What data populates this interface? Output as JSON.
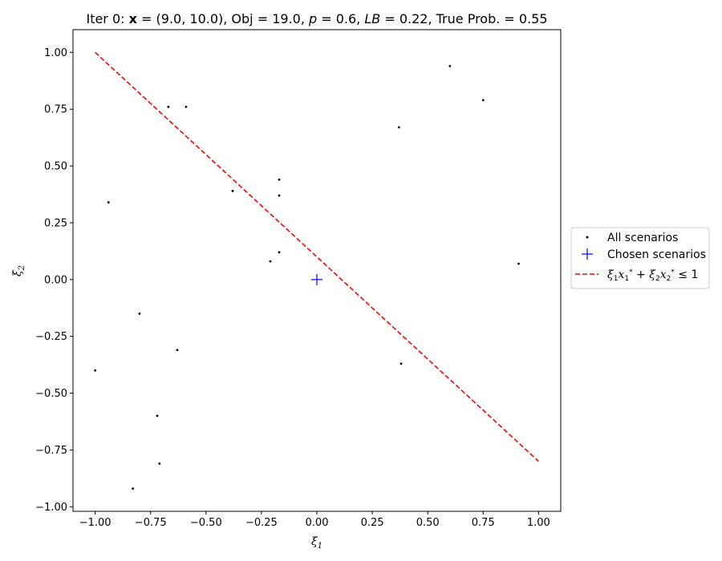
{
  "chart_data": {
    "type": "scatter",
    "title": {
      "prefix": "Iter 0: ",
      "bold_var": "x",
      "rest_1": " = (9.0, 10.0), Obj = 19.0, ",
      "p_var": "p",
      "rest_2": " = 0.6, ",
      "lb_var": "LB",
      "rest_3": " = 0.22, True Prob. = 0.55"
    },
    "xlabel": "ξ1",
    "ylabel": "ξ2",
    "xlim": [
      -1.1,
      1.1
    ],
    "ylim": [
      -1.02,
      1.1
    ],
    "grid": false,
    "legend_position": "outside-right",
    "xticks": [
      -1.0,
      -0.75,
      -0.5,
      -0.25,
      0.0,
      0.25,
      0.5,
      0.75,
      1.0
    ],
    "xtick_labels": [
      "−1.00",
      "−0.75",
      "−0.50",
      "−0.25",
      "0.00",
      "0.25",
      "0.50",
      "0.75",
      "1.00"
    ],
    "yticks": [
      -1.0,
      -0.75,
      -0.5,
      -0.25,
      0.0,
      0.25,
      0.5,
      0.75,
      1.0
    ],
    "ytick_labels": [
      "−1.00",
      "−0.75",
      "−0.50",
      "−0.25",
      "0.00",
      "0.25",
      "0.50",
      "0.75",
      "1.00"
    ],
    "series": [
      {
        "name": "All scenarios",
        "marker": "dot",
        "color": "#000000",
        "points": [
          [
            -0.67,
            0.76
          ],
          [
            -0.59,
            0.76
          ],
          [
            -0.94,
            0.34
          ],
          [
            -0.38,
            0.39
          ],
          [
            -0.17,
            0.44
          ],
          [
            -0.17,
            0.37
          ],
          [
            -0.17,
            0.12
          ],
          [
            -0.21,
            0.08
          ],
          [
            -0.8,
            -0.15
          ],
          [
            -0.63,
            -0.31
          ],
          [
            -1.0,
            -0.4
          ],
          [
            -0.72,
            -0.6
          ],
          [
            -0.71,
            -0.81
          ],
          [
            -0.83,
            -0.92
          ],
          [
            0.37,
            0.67
          ],
          [
            0.6,
            0.94
          ],
          [
            0.75,
            0.79
          ],
          [
            0.91,
            0.07
          ],
          [
            0.38,
            -0.37
          ]
        ]
      },
      {
        "name": "Chosen scenarios",
        "marker": "plus",
        "color": "#0000ff",
        "points": [
          [
            0.0,
            0.0
          ]
        ]
      },
      {
        "name": "ξ1x1* + ξ2x2* ≤ 1",
        "marker": "dashed-line",
        "color": "#ff0000",
        "points": [
          [
            -1.0,
            1.0
          ],
          [
            1.0,
            -0.8
          ]
        ]
      }
    ]
  }
}
